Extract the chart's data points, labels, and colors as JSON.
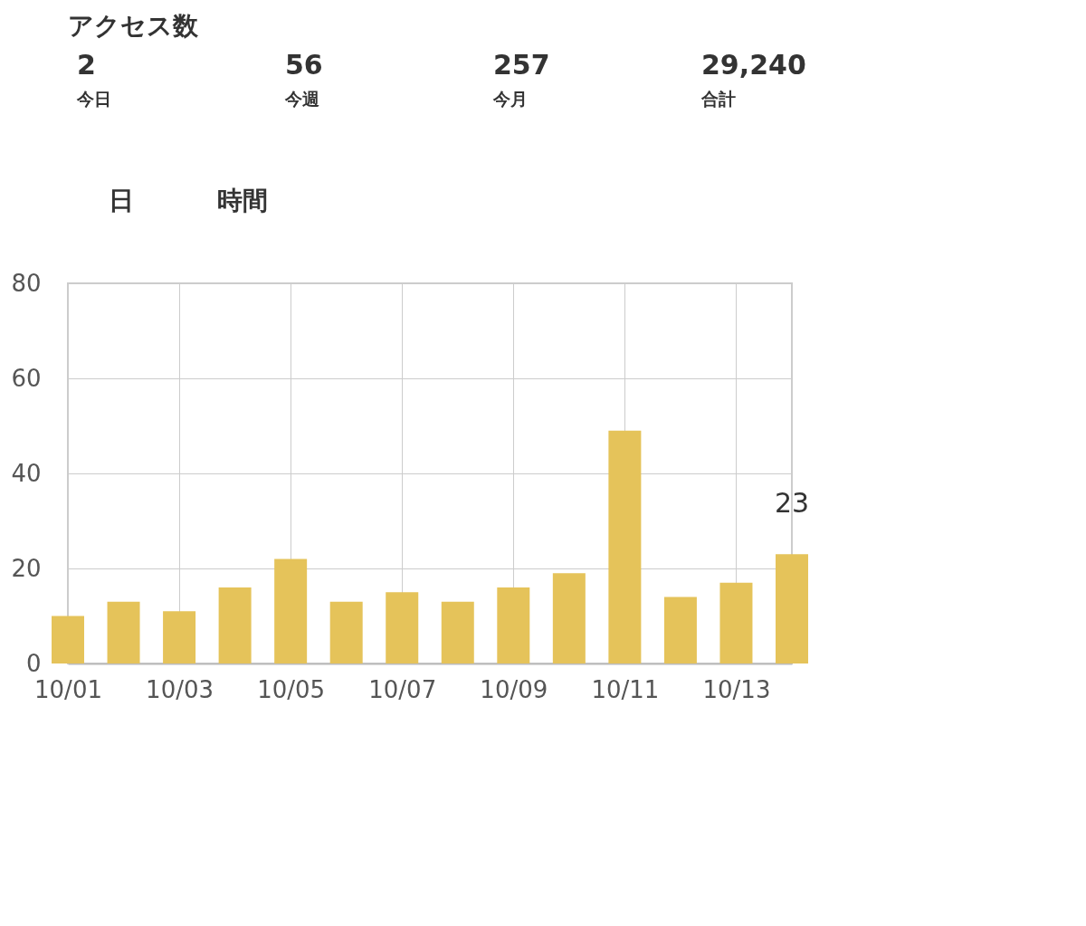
{
  "chart_data": {
    "type": "bar",
    "title": "アクセス数",
    "annotations": [
      "2",
      "今日",
      "56",
      "今週",
      "257",
      "今月",
      "29,240",
      "合計",
      "日",
      "時間"
    ],
    "categories": [
      "10/01",
      null,
      "10/03",
      null,
      "10/05",
      null,
      "10/07",
      null,
      "10/09",
      null,
      "10/11",
      null,
      "10/13",
      null
    ],
    "values": [
      10,
      13,
      11,
      16,
      22,
      13,
      15,
      13,
      16,
      19,
      49,
      14,
      17,
      23
    ],
    "value_labels": [
      null,
      null,
      null,
      null,
      null,
      null,
      null,
      null,
      null,
      null,
      null,
      null,
      null,
      "23"
    ],
    "color": "#e5c35a",
    "ylim": [
      0,
      80
    ],
    "yticks": [
      0,
      20,
      40,
      60,
      80
    ],
    "grid": true
  }
}
